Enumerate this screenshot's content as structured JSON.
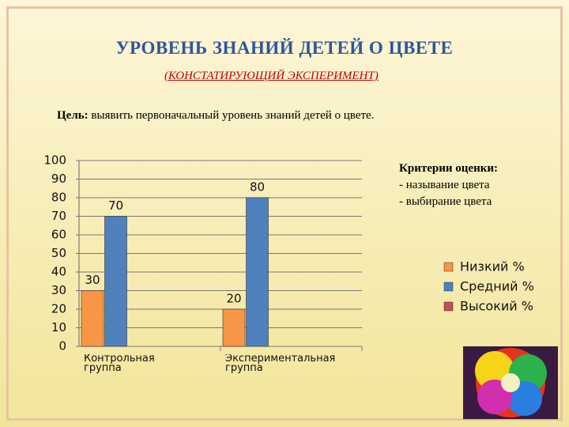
{
  "header": {
    "title": "УРОВЕНЬ ЗНАНИЙ ДЕТЕЙ О ЦВЕТЕ",
    "subtitle": "(КОНСТАТИРУЮЩИЙ ЭКСПЕРИМЕНТ)"
  },
  "goal": {
    "label": "Цель:",
    "text": "выявить первоначальный уровень знаний детей о цвете."
  },
  "criteria": {
    "title": "Критерии оценки:",
    "items": [
      "- называние цвета",
      "- выбирание цвета"
    ]
  },
  "chart_data": {
    "type": "bar",
    "categories": [
      "Контрольная группа",
      "Экспериментальная группа"
    ],
    "series": [
      {
        "name": "Низкий %",
        "color": "#f79646",
        "values": [
          30,
          20
        ]
      },
      {
        "name": "Средний %",
        "color": "#4f81bd",
        "values": [
          70,
          80
        ]
      },
      {
        "name": "Высокий %",
        "color": "#c0504d",
        "values": [
          0,
          0
        ]
      }
    ],
    "ylim": [
      0,
      100
    ],
    "yticks": [
      0,
      10,
      20,
      30,
      40,
      50,
      60,
      70,
      80,
      90,
      100
    ],
    "grid": true
  }
}
